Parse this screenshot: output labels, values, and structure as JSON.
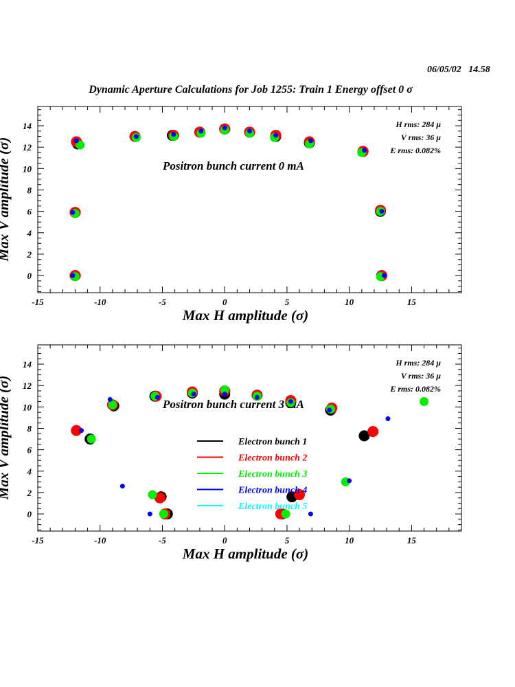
{
  "header": {
    "date": "06/05/02",
    "time": "14.58",
    "title": "Dynamic Aperture Calculations for Job 1255:  Train 1   Energy offset  0 σ"
  },
  "chart_data": [
    {
      "type": "scatter",
      "xlabel": "Max H amplitude (σ)",
      "ylabel": "Max V amplitude (σ)",
      "xlim": [
        -15,
        19
      ],
      "ylim": [
        -1.6,
        15.8
      ],
      "x_ticks": [
        -15,
        -10,
        -5,
        0,
        5,
        10,
        15
      ],
      "y_ticks": [
        0,
        2,
        4,
        6,
        8,
        10,
        12,
        14
      ],
      "annotation": "Positron bunch current  0 mA",
      "rms": [
        "H rms: 284 μ",
        "V rms: 36 μ",
        "E rms: 0.082%"
      ],
      "series": [
        {
          "color": "#000000",
          "marker": "large",
          "points": [
            [
              -11.8,
              12.3
            ],
            [
              -7.2,
              13.0
            ],
            [
              -4.2,
              13.1
            ],
            [
              -2.0,
              13.4
            ],
            [
              0.0,
              13.7
            ],
            [
              2.0,
              13.4
            ],
            [
              4.1,
              13.0
            ],
            [
              6.8,
              12.4
            ],
            [
              11.1,
              11.6
            ],
            [
              -12.0,
              5.9
            ],
            [
              12.5,
              6.0
            ],
            [
              -12.0,
              0.0
            ],
            [
              12.6,
              0.0
            ]
          ]
        },
        {
          "color": "#ff0000",
          "marker": "large",
          "points": [
            [
              -11.9,
              12.5
            ],
            [
              -7.2,
              13.0
            ],
            [
              -4.1,
              13.1
            ],
            [
              -2.0,
              13.4
            ],
            [
              0.0,
              13.7
            ],
            [
              2.0,
              13.4
            ],
            [
              4.1,
              13.1
            ],
            [
              6.8,
              12.5
            ],
            [
              11.1,
              11.6
            ],
            [
              -12.0,
              5.9
            ],
            [
              12.5,
              6.1
            ],
            [
              -12.0,
              0.0
            ],
            [
              12.6,
              0.0
            ]
          ]
        },
        {
          "color": "#00ee00",
          "marker": "medium",
          "points": [
            [
              -11.6,
              12.2
            ],
            [
              -7.1,
              12.9
            ],
            [
              -4.1,
              13.0
            ],
            [
              -1.9,
              13.3
            ],
            [
              0.0,
              13.6
            ],
            [
              2.0,
              13.3
            ],
            [
              4.0,
              12.9
            ],
            [
              6.8,
              12.3
            ],
            [
              11.0,
              11.5
            ],
            [
              -12.0,
              5.8
            ],
            [
              12.5,
              6.0
            ],
            [
              -12.0,
              -0.1
            ],
            [
              12.5,
              -0.1
            ]
          ]
        },
        {
          "color": "#0000ff",
          "marker": "small",
          "points": [
            [
              -11.9,
              12.6
            ],
            [
              -7.1,
              13.0
            ],
            [
              -4.1,
              13.2
            ],
            [
              -1.9,
              13.5
            ],
            [
              0.0,
              13.8
            ],
            [
              2.0,
              13.5
            ],
            [
              4.1,
              13.1
            ],
            [
              6.9,
              12.6
            ],
            [
              11.2,
              11.7
            ],
            [
              -12.2,
              5.9
            ],
            [
              12.6,
              6.0
            ],
            [
              -12.2,
              0.0
            ],
            [
              12.8,
              0.0
            ]
          ]
        }
      ]
    },
    {
      "type": "scatter",
      "xlabel": "Max H amplitude (σ)",
      "ylabel": "Max V amplitude (σ)",
      "xlim": [
        -15,
        19
      ],
      "ylim": [
        -1.6,
        15.8
      ],
      "x_ticks": [
        -15,
        -10,
        -5,
        0,
        5,
        10,
        15
      ],
      "y_ticks": [
        0,
        2,
        4,
        6,
        8,
        10,
        12,
        14
      ],
      "annotation": "Positron bunch current  3 mA",
      "rms": [
        "H rms: 284 μ",
        "V rms: 36 μ",
        "E rms: 0.082%"
      ],
      "legend": [
        {
          "label": "Electron bunch 1",
          "color": "#000000"
        },
        {
          "label": "Electron bunch 2",
          "color": "#ff0000"
        },
        {
          "label": "Electron bunch 3",
          "color": "#00ee00"
        },
        {
          "label": "Electron bunch 4",
          "color": "#0000ff"
        },
        {
          "label": "Electron bunch 5",
          "color": "#00ffff"
        }
      ],
      "series": [
        {
          "name": "Electron bunch 1",
          "color": "#000000",
          "marker": "large",
          "points": [
            [
              -10.8,
              7.0
            ],
            [
              -8.9,
              10.1
            ],
            [
              -5.6,
              11.0
            ],
            [
              -2.6,
              11.3
            ],
            [
              0.0,
              11.2
            ],
            [
              2.6,
              11.1
            ],
            [
              5.3,
              10.4
            ],
            [
              8.5,
              9.7
            ],
            [
              11.2,
              7.3
            ],
            [
              -5.1,
              1.6
            ],
            [
              -4.6,
              0.0
            ],
            [
              4.6,
              0.0
            ],
            [
              5.4,
              1.6
            ]
          ]
        },
        {
          "name": "Electron bunch 2",
          "color": "#ff0000",
          "marker": "large",
          "points": [
            [
              -11.9,
              7.8
            ],
            [
              -9.0,
              10.2
            ],
            [
              -5.5,
              11.0
            ],
            [
              -2.6,
              11.4
            ],
            [
              0.0,
              11.5
            ],
            [
              2.6,
              11.1
            ],
            [
              5.3,
              10.6
            ],
            [
              8.6,
              9.9
            ],
            [
              11.9,
              7.7
            ],
            [
              -5.2,
              1.5
            ],
            [
              -4.8,
              0.0
            ],
            [
              4.5,
              0.0
            ],
            [
              6.0,
              1.8
            ]
          ]
        },
        {
          "name": "Electron bunch 3",
          "color": "#00ee00",
          "marker": "medium",
          "points": [
            [
              -10.7,
              7.0
            ],
            [
              -9.0,
              10.2
            ],
            [
              -5.6,
              11.0
            ],
            [
              -2.6,
              11.3
            ],
            [
              0.0,
              11.6
            ],
            [
              2.6,
              11.0
            ],
            [
              5.3,
              10.4
            ],
            [
              8.5,
              9.8
            ],
            [
              16.0,
              10.5
            ],
            [
              -5.8,
              1.8
            ],
            [
              -4.9,
              0.0
            ],
            [
              4.9,
              0.0
            ],
            [
              9.7,
              3.0
            ]
          ]
        },
        {
          "name": "Electron bunch 4",
          "color": "#0000ff",
          "marker": "small",
          "points": [
            [
              -11.5,
              7.8
            ],
            [
              -9.2,
              10.7
            ],
            [
              -5.4,
              10.9
            ],
            [
              -2.5,
              11.2
            ],
            [
              0.0,
              11.2
            ],
            [
              2.6,
              10.9
            ],
            [
              5.3,
              10.5
            ],
            [
              8.4,
              9.7
            ],
            [
              13.1,
              8.9
            ],
            [
              -8.2,
              2.6
            ],
            [
              -6.0,
              0.0
            ],
            [
              6.9,
              0.0
            ],
            [
              10.0,
              3.1
            ]
          ]
        }
      ]
    }
  ]
}
